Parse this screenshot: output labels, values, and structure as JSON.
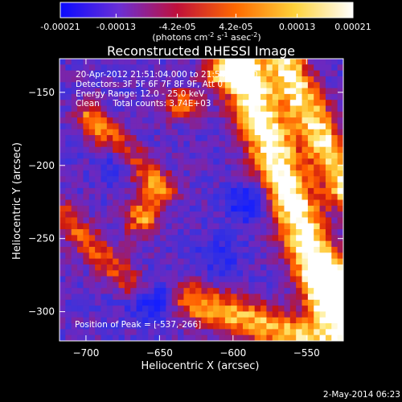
{
  "colorbar": {
    "ticks": [
      "-0.00021",
      "-0.00013",
      "-4.2e-05",
      "4.2e-05",
      "0.00013",
      "0.00021"
    ],
    "tick_values": [
      -0.00021,
      -0.00013,
      -4.2e-05,
      4.2e-05,
      0.00013,
      0.00021
    ],
    "range": [
      -0.00021,
      0.00021
    ],
    "units_main": "(photons cm",
    "units_exp1": "-2",
    "units_mid": " s",
    "units_exp2": "-1",
    "units_tail": " asec",
    "units_exp3": "-2",
    "units_close": ")",
    "colors": [
      "#0a0aff",
      "#6a2fd6",
      "#c0103a",
      "#ff6a00",
      "#ffd23a",
      "#ffffff"
    ]
  },
  "title": "Reconstructed RHESSI Image",
  "info": {
    "line1": "20-Apr-2012 21:51:04.000 to 21:54:32.000",
    "line2": "Detectors: 3F 5F 6F 7F 8F 9F, Att 0",
    "line3": "Energy Range: 12.0 - 25.0 keV",
    "line4": "Clean     Total counts: 3.74E+03"
  },
  "peak_label": "Position of Peak = [-537,-266]",
  "footer_date": "2-May-2014 06:23",
  "chart_data": {
    "type": "heatmap",
    "title": "Reconstructed RHESSI Image",
    "xlabel": "Heliocentric X (arcsec)",
    "ylabel": "Heliocentric Y (arcsec)",
    "xlim": [
      -718,
      -525
    ],
    "ylim": [
      -320,
      -127
    ],
    "x_ticks": [
      -700,
      -650,
      -600,
      -550
    ],
    "y_ticks": [
      -300,
      -250,
      -200,
      -150
    ],
    "x_tick_labels": [
      "−700",
      "−650",
      "−600",
      "−550"
    ],
    "y_tick_labels": [
      "−300",
      "−250",
      "−200",
      "−150"
    ],
    "peak": [
      -537,
      -266
    ],
    "grid": false
  }
}
